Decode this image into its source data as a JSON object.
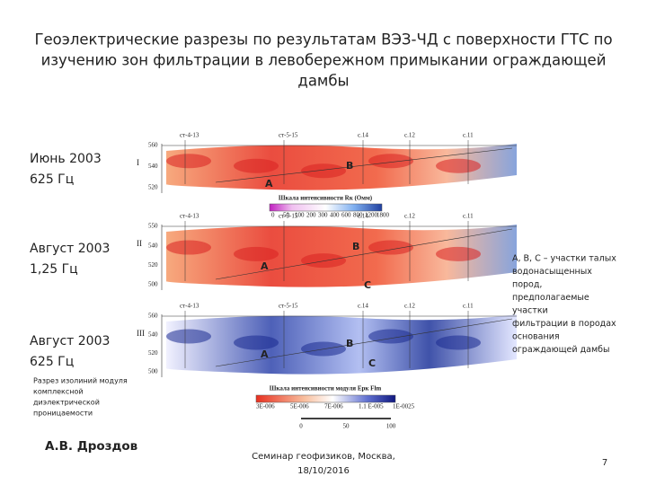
{
  "title_lines": [
    "Геоэлектрические разрезы по результатам ВЭЗ-ЧД с поверхности ГТС по",
    "изучению зон фильтрации в левобережном примыкании ограждающей",
    "дамбы"
  ],
  "panels": [
    {
      "date": "Июнь 2003",
      "frequency": "625 Гц",
      "numeral": "I",
      "elevations": [
        "560",
        "540",
        "520"
      ],
      "wells": [
        "ст-4-13",
        "ст-5-15",
        "с.14",
        "с.12",
        "с.11"
      ],
      "zones": [
        "В",
        "А"
      ]
    },
    {
      "date": "Август 2003",
      "frequency": "1,25 Гц",
      "numeral": "II",
      "elevations": [
        "550",
        "540",
        "520",
        "500"
      ],
      "wells": [
        "ст-4-13",
        "ст-5-15",
        "с.14",
        "с.12",
        "с.11"
      ],
      "zones": [
        "В",
        "А",
        "С"
      ]
    },
    {
      "date": "Август 2003",
      "frequency": "625 Гц",
      "numeral": "III",
      "elevations": [
        "560",
        "540",
        "520",
        "500"
      ],
      "wells": [
        "ст-4-13",
        "ст-5-15",
        "с.14",
        "с.12",
        "с.11"
      ],
      "zones": [
        "В",
        "А",
        "С"
      ]
    }
  ],
  "scale_caption_1": "Шкала интенсивности Rк (Омм)",
  "scale_ticks_1": [
    "0",
    "50",
    "100",
    "200",
    "300",
    "400",
    "600",
    "800",
    "1200",
    "1800"
  ],
  "scale_caption_2": "Шкала интенсивности модуля Ерк Flm",
  "scale_ticks_2": [
    "3E-006",
    "5E-006",
    "7E-006",
    "1.1 E-005",
    "1E-0025"
  ],
  "distance_ticks": [
    "0",
    "50",
    "100"
  ],
  "note_lines": [
    "Разрез изолиний модуля",
    "комплексной",
    "диэлектрической",
    "проницаемости"
  ],
  "author": "А.В. Дроздов",
  "legend_lines": [
    "А, В, С – участки талых",
    "водонасыщенных",
    "пород,",
    "предполагаемые",
    "участки",
    "фильтрации в породах",
    "основания",
    "ограждающей дамбы"
  ],
  "footer_lines": [
    "Семинар геофизиков, Москва,",
    "18/10/2016"
  ],
  "page_number": "7"
}
